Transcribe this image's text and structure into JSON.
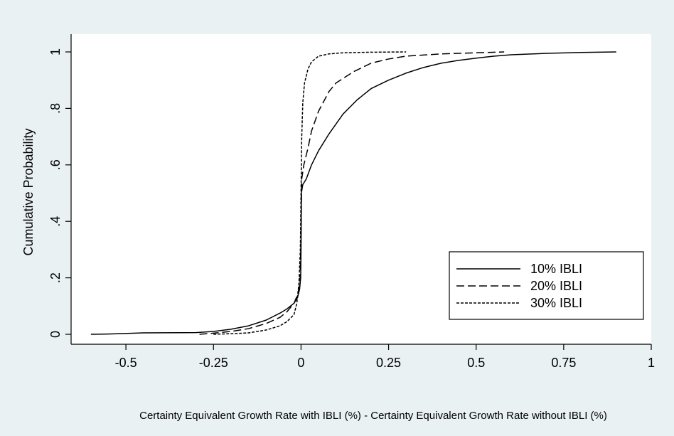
{
  "colors": {
    "background": "#eaf1f3",
    "plot_background": "#ffffff",
    "line": "#000000"
  },
  "chart_data": {
    "type": "line",
    "title": "",
    "xlabel": "Certainty Equivalent Growth Rate with IBLI (%) - Certainty Equivalent Growth Rate without IBLI (%)",
    "ylabel": "Cumulative Probability",
    "xlim": [
      -0.62,
      1.0
    ],
    "ylim": [
      0,
      1
    ],
    "x_ticks": [
      -0.5,
      -0.25,
      0,
      0.25,
      0.5,
      0.75,
      1
    ],
    "x_tick_labels": [
      "-0.5",
      "-0.25",
      "0",
      "0.25",
      "0.5",
      "0.75",
      "1"
    ],
    "y_ticks": [
      0,
      0.2,
      0.4,
      0.6,
      0.8,
      1
    ],
    "y_tick_labels": [
      "0",
      ".2",
      ".4",
      ".6",
      ".8",
      "1"
    ],
    "grid": false,
    "legend_position": "bottom-right",
    "series": [
      {
        "name": "10% IBLI",
        "style": "solid",
        "points": [
          [
            -0.6,
            0.0
          ],
          [
            -0.55,
            0.001
          ],
          [
            -0.45,
            0.005
          ],
          [
            -0.3,
            0.006
          ],
          [
            -0.25,
            0.01
          ],
          [
            -0.2,
            0.018
          ],
          [
            -0.15,
            0.03
          ],
          [
            -0.1,
            0.05
          ],
          [
            -0.06,
            0.075
          ],
          [
            -0.04,
            0.09
          ],
          [
            -0.02,
            0.11
          ],
          [
            -0.01,
            0.13
          ],
          [
            -0.004,
            0.16
          ],
          [
            -0.001,
            0.2
          ],
          [
            0.0,
            0.3
          ],
          [
            0.001,
            0.5
          ],
          [
            0.005,
            0.53
          ],
          [
            0.015,
            0.55
          ],
          [
            0.03,
            0.6
          ],
          [
            0.05,
            0.65
          ],
          [
            0.08,
            0.71
          ],
          [
            0.12,
            0.78
          ],
          [
            0.16,
            0.83
          ],
          [
            0.2,
            0.87
          ],
          [
            0.25,
            0.9
          ],
          [
            0.3,
            0.925
          ],
          [
            0.35,
            0.945
          ],
          [
            0.4,
            0.96
          ],
          [
            0.45,
            0.97
          ],
          [
            0.5,
            0.978
          ],
          [
            0.55,
            0.985
          ],
          [
            0.6,
            0.99
          ],
          [
            0.7,
            0.995
          ],
          [
            0.8,
            0.998
          ],
          [
            0.85,
            0.999
          ],
          [
            0.9,
            1.0
          ]
        ]
      },
      {
        "name": "20% IBLI",
        "style": "dashed",
        "points": [
          [
            -0.29,
            0.0
          ],
          [
            -0.25,
            0.004
          ],
          [
            -0.2,
            0.01
          ],
          [
            -0.15,
            0.02
          ],
          [
            -0.1,
            0.038
          ],
          [
            -0.06,
            0.06
          ],
          [
            -0.04,
            0.08
          ],
          [
            -0.02,
            0.11
          ],
          [
            -0.01,
            0.14
          ],
          [
            -0.003,
            0.18
          ],
          [
            0.0,
            0.35
          ],
          [
            0.002,
            0.55
          ],
          [
            0.008,
            0.6
          ],
          [
            0.02,
            0.66
          ],
          [
            0.03,
            0.72
          ],
          [
            0.05,
            0.79
          ],
          [
            0.08,
            0.86
          ],
          [
            0.1,
            0.89
          ],
          [
            0.15,
            0.93
          ],
          [
            0.2,
            0.96
          ],
          [
            0.25,
            0.975
          ],
          [
            0.3,
            0.985
          ],
          [
            0.4,
            0.993
          ],
          [
            0.5,
            0.997
          ],
          [
            0.58,
            1.0
          ]
        ]
      },
      {
        "name": "30% IBLI",
        "style": "dotted",
        "points": [
          [
            -0.25,
            0.0
          ],
          [
            -0.2,
            0.002
          ],
          [
            -0.15,
            0.005
          ],
          [
            -0.1,
            0.015
          ],
          [
            -0.06,
            0.03
          ],
          [
            -0.04,
            0.045
          ],
          [
            -0.02,
            0.07
          ],
          [
            -0.012,
            0.11
          ],
          [
            -0.006,
            0.18
          ],
          [
            -0.002,
            0.3
          ],
          [
            0.0,
            0.5
          ],
          [
            0.002,
            0.7
          ],
          [
            0.005,
            0.82
          ],
          [
            0.01,
            0.89
          ],
          [
            0.02,
            0.94
          ],
          [
            0.03,
            0.965
          ],
          [
            0.05,
            0.985
          ],
          [
            0.08,
            0.993
          ],
          [
            0.12,
            0.997
          ],
          [
            0.2,
            0.999
          ],
          [
            0.3,
            1.0
          ]
        ]
      }
    ]
  }
}
